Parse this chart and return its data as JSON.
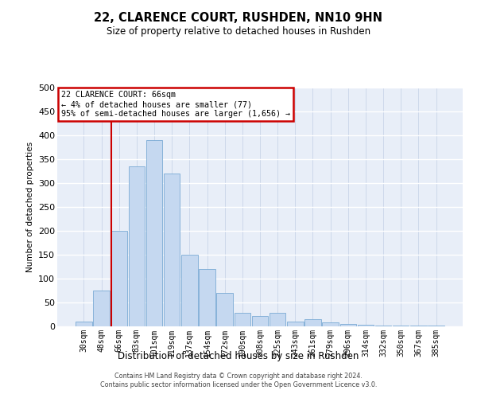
{
  "title": "22, CLARENCE COURT, RUSHDEN, NN10 9HN",
  "subtitle": "Size of property relative to detached houses in Rushden",
  "xlabel": "Distribution of detached houses by size in Rushden",
  "ylabel": "Number of detached properties",
  "annotation_title": "22 CLARENCE COURT: 66sqm",
  "annotation_line1": "← 4% of detached houses are smaller (77)",
  "annotation_line2": "95% of semi-detached houses are larger (1,656) →",
  "categories": [
    "30sqm",
    "48sqm",
    "66sqm",
    "83sqm",
    "101sqm",
    "119sqm",
    "137sqm",
    "154sqm",
    "172sqm",
    "190sqm",
    "208sqm",
    "225sqm",
    "243sqm",
    "261sqm",
    "279sqm",
    "296sqm",
    "314sqm",
    "332sqm",
    "350sqm",
    "367sqm",
    "385sqm"
  ],
  "values": [
    10,
    75,
    200,
    335,
    390,
    320,
    150,
    120,
    70,
    28,
    22,
    28,
    10,
    15,
    8,
    5,
    3,
    2,
    2,
    2,
    2
  ],
  "bar_color": "#c5d8f0",
  "bar_edge_color": "#7aaad4",
  "vline_color": "#cc0000",
  "annotation_box_edgecolor": "#cc0000",
  "bg_color": "#e8eef8",
  "grid_color": "#d0d8ea",
  "ylim": [
    0,
    500
  ],
  "yticks": [
    0,
    50,
    100,
    150,
    200,
    250,
    300,
    350,
    400,
    450,
    500
  ],
  "footer1": "Contains HM Land Registry data © Crown copyright and database right 2024.",
  "footer2": "Contains public sector information licensed under the Open Government Licence v3.0."
}
